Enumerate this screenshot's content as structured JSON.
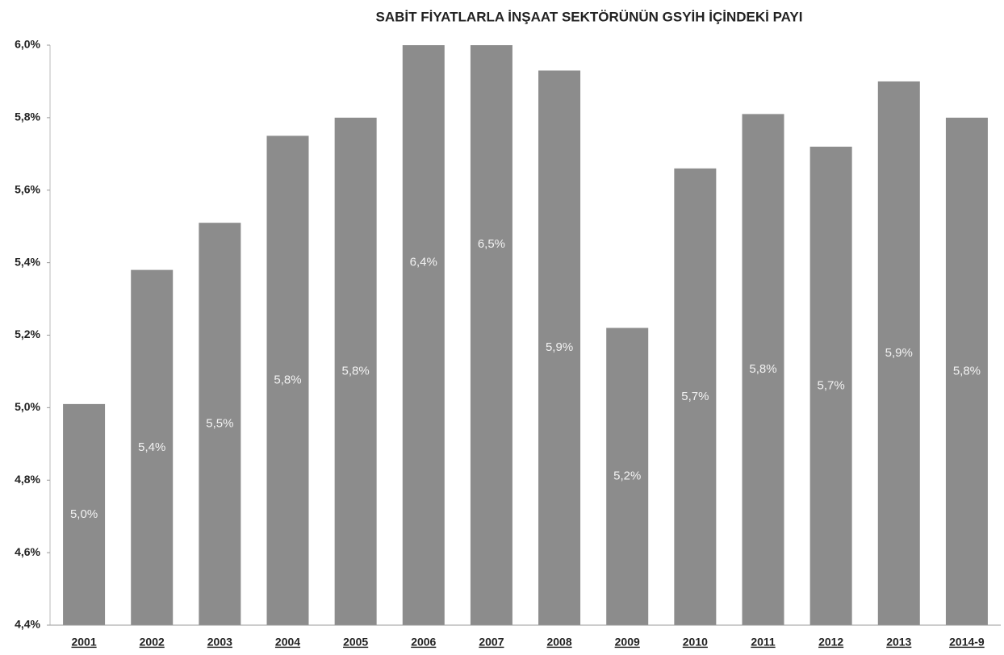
{
  "chart_data": {
    "type": "bar",
    "title": "SABİT FİYATLARLA İNŞAAT SEKTÖRÜNÜN GSYİH İÇİNDEKİ PAYI",
    "categories": [
      "2001",
      "2002",
      "2003",
      "2004",
      "2005",
      "2006",
      "2007",
      "2008",
      "2009",
      "2010",
      "2011",
      "2012",
      "2013",
      "2014-9"
    ],
    "values": [
      5.01,
      5.38,
      5.51,
      5.75,
      5.8,
      6.4,
      6.5,
      5.93,
      5.22,
      5.66,
      5.81,
      5.72,
      5.9,
      5.8
    ],
    "value_labels": [
      "5,0%",
      "5,4%",
      "5,5%",
      "5,8%",
      "5,8%",
      "6,4%",
      "6,5%",
      "5,9%",
      "5,2%",
      "5,7%",
      "5,8%",
      "5,7%",
      "5,9%",
      "5,8%"
    ],
    "color": "#8c8c8c",
    "ylim": [
      4.4,
      6.0
    ],
    "yticks": [
      {
        "value": 4.4,
        "label": "4,4%"
      },
      {
        "value": 4.6,
        "label": "4,6%"
      },
      {
        "value": 4.8,
        "label": "4,8%"
      },
      {
        "value": 5.0,
        "label": "5,0%"
      },
      {
        "value": 5.2,
        "label": "5,2%"
      },
      {
        "value": 5.4,
        "label": "5,4%"
      },
      {
        "value": 5.6,
        "label": "5,6%"
      },
      {
        "value": 5.8,
        "label": "5,8%"
      },
      {
        "value": 6.0,
        "label": "6,0%"
      }
    ],
    "grid": false
  }
}
